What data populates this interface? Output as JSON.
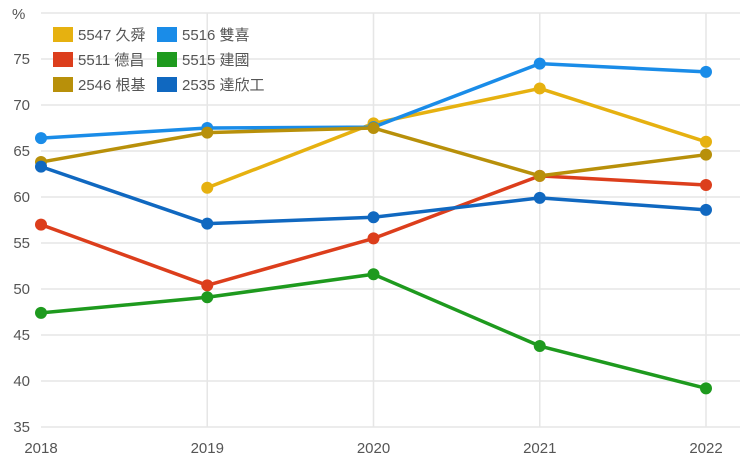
{
  "chart_data": {
    "type": "line",
    "title": "",
    "xlabel": "",
    "ylabel": "%",
    "x": [
      "2018",
      "2019",
      "2020",
      "2021",
      "2022"
    ],
    "ylim": [
      35,
      78
    ],
    "yticks": [
      35,
      40,
      45,
      50,
      55,
      60,
      65,
      70,
      75
    ],
    "grid": true,
    "legend_position": "top-left inside",
    "series": [
      {
        "name": "5547 久舜",
        "color": "#E6B110",
        "values": [
          null,
          61.0,
          68.0,
          71.8,
          66.0
        ]
      },
      {
        "name": "5516 雙喜",
        "color": "#1A8CE8",
        "values": [
          66.4,
          67.5,
          67.6,
          74.5,
          73.6
        ]
      },
      {
        "name": "5511 德昌",
        "color": "#DC3E1C",
        "values": [
          57.0,
          50.4,
          55.5,
          62.3,
          61.3
        ]
      },
      {
        "name": "5515 建國",
        "color": "#1E9A1E",
        "values": [
          47.4,
          49.1,
          51.6,
          43.8,
          39.2
        ]
      },
      {
        "name": "2546 根基",
        "color": "#B8900A",
        "values": [
          63.8,
          67.0,
          67.5,
          62.3,
          64.6
        ]
      },
      {
        "name": "2535 達欣工",
        "color": "#1068C0",
        "values": [
          63.3,
          57.1,
          57.8,
          59.9,
          58.6
        ]
      }
    ]
  }
}
